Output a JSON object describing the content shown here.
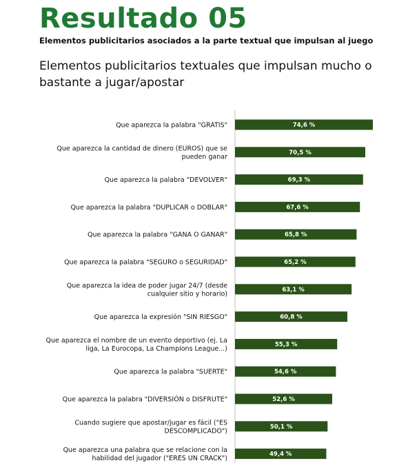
{
  "header": {
    "title": "Resultado 05",
    "subtitle": "Elementos publicitarios asociados a la parte textual que impulsan al juego",
    "heading": "Elementos publicitarios textuales que impulsan mucho o bastante a jugar/apostar"
  },
  "colors": {
    "title": "#1f7a33",
    "bar": "#2a5219"
  },
  "chart_data": {
    "type": "bar",
    "orientation": "horizontal",
    "title": "Elementos publicitarios textuales que impulsan mucho o bastante a jugar/apostar",
    "categories": [
      "Que aparezca la palabra \"GRATIS\"",
      "Que aparezca la cantidad de dinero (EUROS) que se pueden ganar",
      "Que aparezca la palabra \"DEVOLVER\"",
      "Que aparezca la palabra \"DUPLICAR o DOBLAR\"",
      "Que aparezca la palabra \"GANA O GANAR\"",
      "Que aparezca la palabra \"SEGURO o SEGURIDAD\"",
      "Que aparezca la idea de poder jugar 24/7 (desde cualquier sitio y horario)",
      "Que aparezca la expresión \"SIN RIESGO\"",
      "Que aparezca el nombre de un evento deportivo (ej. La liga, La Eurocopa, La Champions League...)",
      "Que aparezca la palabra \"SUERTE\"",
      "Que aparezca la palabra \"DIVERSIÓN o DISFRUTE\"",
      "Cuando sugiere que apostar/jugar es fácil (\"ES DESCOMPLICADO\")",
      "Que aparezca una palabra que se relacione con la habilidad del jugador (\"ERES UN CRACK\")"
    ],
    "label_lines": [
      [
        "Que aparezca la palabra \"GRATIS\""
      ],
      [
        "Que aparezca la cantidad de dinero (EUROS) que se",
        "pueden ganar"
      ],
      [
        "Que aparezca la palabra \"DEVOLVER\""
      ],
      [
        "Que aparezca la palabra \"DUPLICAR o DOBLAR\""
      ],
      [
        "Que aparezca la palabra \"GANA O GANAR\""
      ],
      [
        "Que aparezca la palabra \"SEGURO o SEGURIDAD\""
      ],
      [
        "Que aparezca la idea de poder jugar 24/7 (desde",
        "cualquier sitio y horario)"
      ],
      [
        "Que aparezca la expresión \"SIN RIESGO\""
      ],
      [
        "Que aparezca el nombre de un evento deportivo (ej. La",
        "liga, La Eurocopa, La Champions League...)"
      ],
      [
        "Que aparezca la palabra \"SUERTE\""
      ],
      [
        "Que aparezca la palabra \"DIVERSIÓN o DISFRUTE\""
      ],
      [
        "Cuando sugiere que apostar/jugar es fácil (\"ES",
        "DESCOMPLICADO\")"
      ],
      [
        "Que aparezca una palabra que se relacione con la",
        "habilidad del jugador (\"ERES UN CRACK\")"
      ]
    ],
    "values": [
      74.6,
      70.5,
      69.3,
      67.6,
      65.8,
      65.2,
      63.1,
      60.8,
      55.3,
      54.6,
      52.6,
      50.1,
      49.4
    ],
    "value_labels": [
      "74,6 %",
      "70,5 %",
      "69,3 %",
      "67,6 %",
      "65,8 %",
      "65,2 %",
      "63,1 %",
      "60,8 %",
      "55,3 %",
      "54,6 %",
      "52,6 %",
      "50,1 %",
      "49,4 %"
    ],
    "xlim": [
      0,
      74.6
    ],
    "grid": false,
    "legend": "none"
  }
}
